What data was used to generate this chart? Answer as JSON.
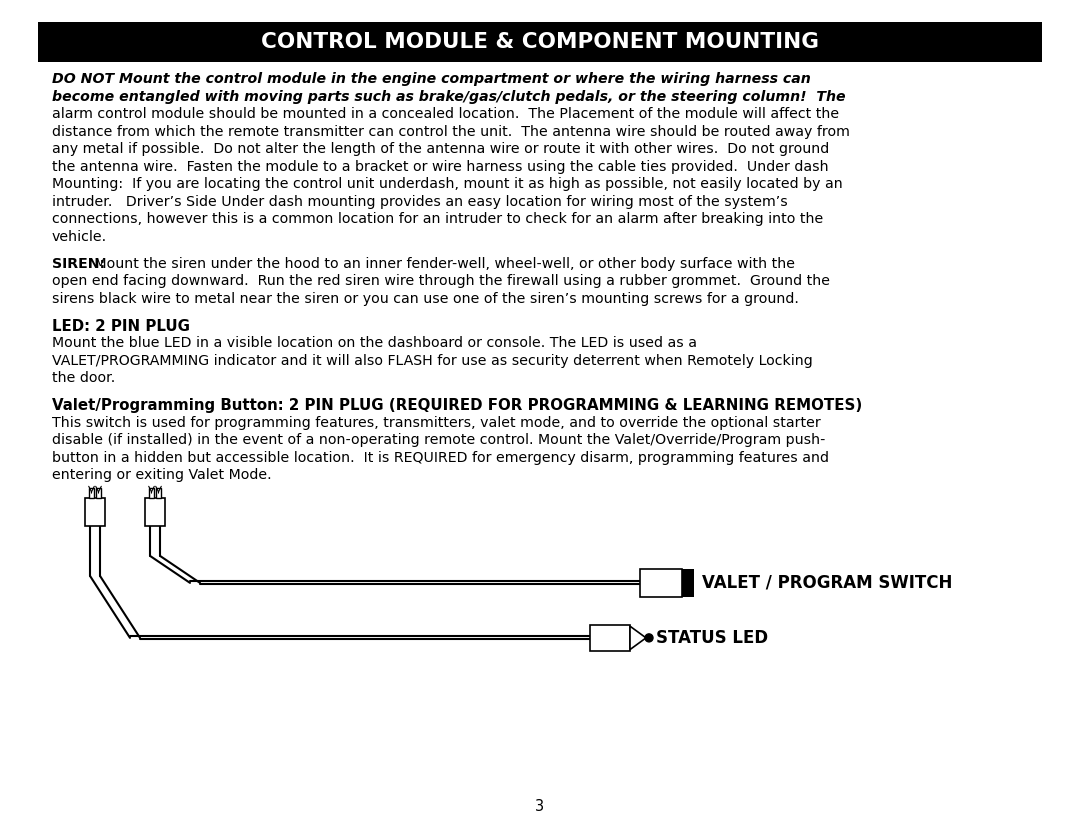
{
  "title": "CONTROL MODULE & COMPONENT MOUNTING",
  "title_bg": "#000000",
  "title_color": "#ffffff",
  "bg_color": "#ffffff",
  "page_number": "3",
  "para1_lines": [
    [
      "bold_italic",
      "DO NOT Mount the control module in the engine compartment or where the wiring harness can"
    ],
    [
      "bold_italic",
      "become entangled with moving parts such as brake/gas/clutch pedals, or the steering column!  The"
    ],
    [
      "normal",
      "alarm control module should be mounted in a concealed location.  The Placement of the module will affect the"
    ],
    [
      "normal",
      "distance from which the remote transmitter can control the unit.  The antenna wire should be routed away from"
    ],
    [
      "normal",
      "any metal if possible.  Do not alter the length of the antenna wire or route it with other wires.  Do not ground"
    ],
    [
      "normal",
      "the antenna wire.  Fasten the module to a bracket or wire harness using the cable ties provided.  Under dash"
    ],
    [
      "normal",
      "Mounting:  If you are locating the control unit underdash, mount it as high as possible, not easily located by an"
    ],
    [
      "normal",
      "intruder.   Driver’s Side Under dash mounting provides an easy location for wiring most of the system’s"
    ],
    [
      "normal",
      "connections, however this is a common location for an intruder to check for an alarm after breaking into the"
    ],
    [
      "normal",
      "vehicle."
    ]
  ],
  "siren_line1_bold": "SIREN:",
  "siren_line1_normal": " Mount the siren under the hood to an inner fender-well, wheel-well, or other body surface with the",
  "siren_lines": [
    "open end facing downward.  Run the red siren wire through the firewall using a rubber grommet.  Ground the",
    "sirens black wire to metal near the siren or you can use one of the siren’s mounting screws for a ground."
  ],
  "led_heading": "LED: 2 PIN PLUG",
  "led_lines": [
    "Mount the blue LED in a visible location on the dashboard or console. The LED is used as a",
    "VALET/PROGRAMMING indicator and it will also FLASH for use as security deterrent when Remotely Locking",
    "the door."
  ],
  "valet_heading": "Valet/Programming Button: 2 PIN PLUG (REQUIRED FOR PROGRAMMING & LEARNING REMOTES)",
  "valet_lines": [
    "This switch is used for programming features, transmitters, valet mode, and to override the optional starter",
    "disable (if installed) in the event of a non-operating remote control. Mount the Valet/Override/Program push-",
    "button in a hidden but accessible location.  It is REQUIRED for emergency disarm, programming features and",
    "entering or exiting Valet Mode."
  ],
  "label_valet": "VALET / PROGRAM SWITCH",
  "label_status": "STATUS LED"
}
